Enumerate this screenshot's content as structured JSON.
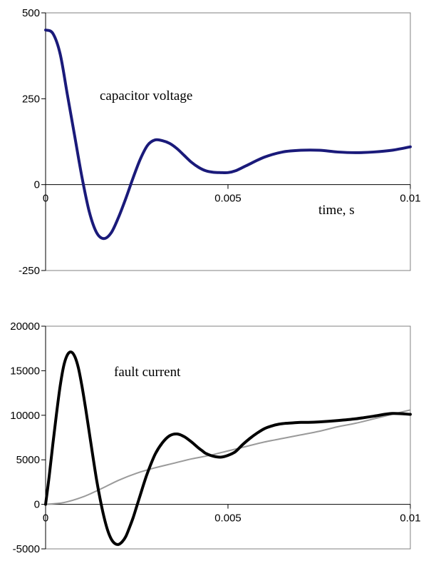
{
  "chart_data": [
    {
      "type": "line",
      "title": "",
      "xlabel": "time, s",
      "ylabel": "",
      "xlim": [
        0,
        0.01
      ],
      "ylim": [
        -250,
        500
      ],
      "x_ticks": [
        "0",
        "0.005",
        "0.01"
      ],
      "y_ticks": [
        "500",
        "250",
        "0",
        "-250"
      ],
      "annotation": "capacitor voltage",
      "grid": false,
      "series": [
        {
          "color": "#1a1a7a",
          "x": [
            0,
            0.0002,
            0.0004,
            0.0006,
            0.0008,
            0.001,
            0.0012,
            0.0014,
            0.0016,
            0.0018,
            0.002,
            0.0022,
            0.0024,
            0.0026,
            0.0028,
            0.003,
            0.0032,
            0.0034,
            0.0036,
            0.0038,
            0.004,
            0.0042,
            0.0044,
            0.0046,
            0.0048,
            0.005,
            0.0052,
            0.0055,
            0.006,
            0.0065,
            0.007,
            0.0075,
            0.008,
            0.0085,
            0.009,
            0.0095,
            0.01
          ],
          "y": [
            450,
            440,
            380,
            260,
            140,
            20,
            -80,
            -140,
            -157,
            -140,
            -95,
            -40,
            20,
            75,
            115,
            130,
            128,
            120,
            105,
            85,
            65,
            50,
            40,
            36,
            35,
            35,
            40,
            55,
            80,
            95,
            100,
            100,
            95,
            93,
            95,
            100,
            110
          ]
        }
      ]
    },
    {
      "type": "line",
      "title": "",
      "xlabel": "",
      "ylabel": "",
      "xlim": [
        0,
        0.01
      ],
      "ylim": [
        -5000,
        20000
      ],
      "x_ticks": [
        "0",
        "0.005",
        "0.01"
      ],
      "y_ticks": [
        "20000",
        "15000",
        "10000",
        "5000",
        "0",
        "-5000"
      ],
      "annotation": "fault current",
      "grid": false,
      "series": [
        {
          "color": "#000000",
          "x": [
            0,
            0.0001,
            0.0002,
            0.0003,
            0.0004,
            0.0005,
            0.0006,
            0.0007,
            0.0008,
            0.0009,
            0.001,
            0.0011,
            0.0012,
            0.0013,
            0.0014,
            0.0015,
            0.0016,
            0.0017,
            0.0018,
            0.0019,
            0.002,
            0.0021,
            0.0022,
            0.0023,
            0.0024,
            0.0025,
            0.0026,
            0.0027,
            0.0028,
            0.003,
            0.0032,
            0.0034,
            0.0036,
            0.0038,
            0.004,
            0.0042,
            0.0043,
            0.0044,
            0.0046,
            0.0048,
            0.005,
            0.0052,
            0.0054,
            0.0056,
            0.0058,
            0.006,
            0.0062,
            0.0064,
            0.0066,
            0.0068,
            0.007,
            0.0072,
            0.0075,
            0.008,
            0.0085,
            0.009,
            0.0095,
            0.01
          ],
          "y": [
            0,
            3200,
            6800,
            10200,
            13300,
            15600,
            16800,
            17100,
            16600,
            15300,
            13200,
            10700,
            8000,
            5300,
            2700,
            500,
            -1400,
            -2900,
            -3900,
            -4400,
            -4500,
            -4200,
            -3600,
            -2600,
            -1500,
            -200,
            1100,
            2400,
            3600,
            5600,
            6900,
            7700,
            7900,
            7600,
            7000,
            6300,
            6000,
            5700,
            5400,
            5300,
            5500,
            5900,
            6700,
            7400,
            8000,
            8500,
            8800,
            9000,
            9100,
            9150,
            9200,
            9200,
            9250,
            9400,
            9600,
            9900,
            10200,
            10100
          ]
        },
        {
          "color": "#9a9a9a",
          "x": [
            0,
            0.0005,
            0.001,
            0.0015,
            0.002,
            0.0025,
            0.003,
            0.0035,
            0.004,
            0.0045,
            0.005,
            0.0055,
            0.006,
            0.0065,
            0.007,
            0.0075,
            0.008,
            0.0085,
            0.009,
            0.0095,
            0.01
          ],
          "y": [
            0,
            200,
            800,
            1700,
            2700,
            3500,
            4100,
            4600,
            5100,
            5500,
            6000,
            6500,
            7000,
            7400,
            7800,
            8200,
            8700,
            9100,
            9600,
            10100,
            10600
          ]
        }
      ]
    }
  ]
}
